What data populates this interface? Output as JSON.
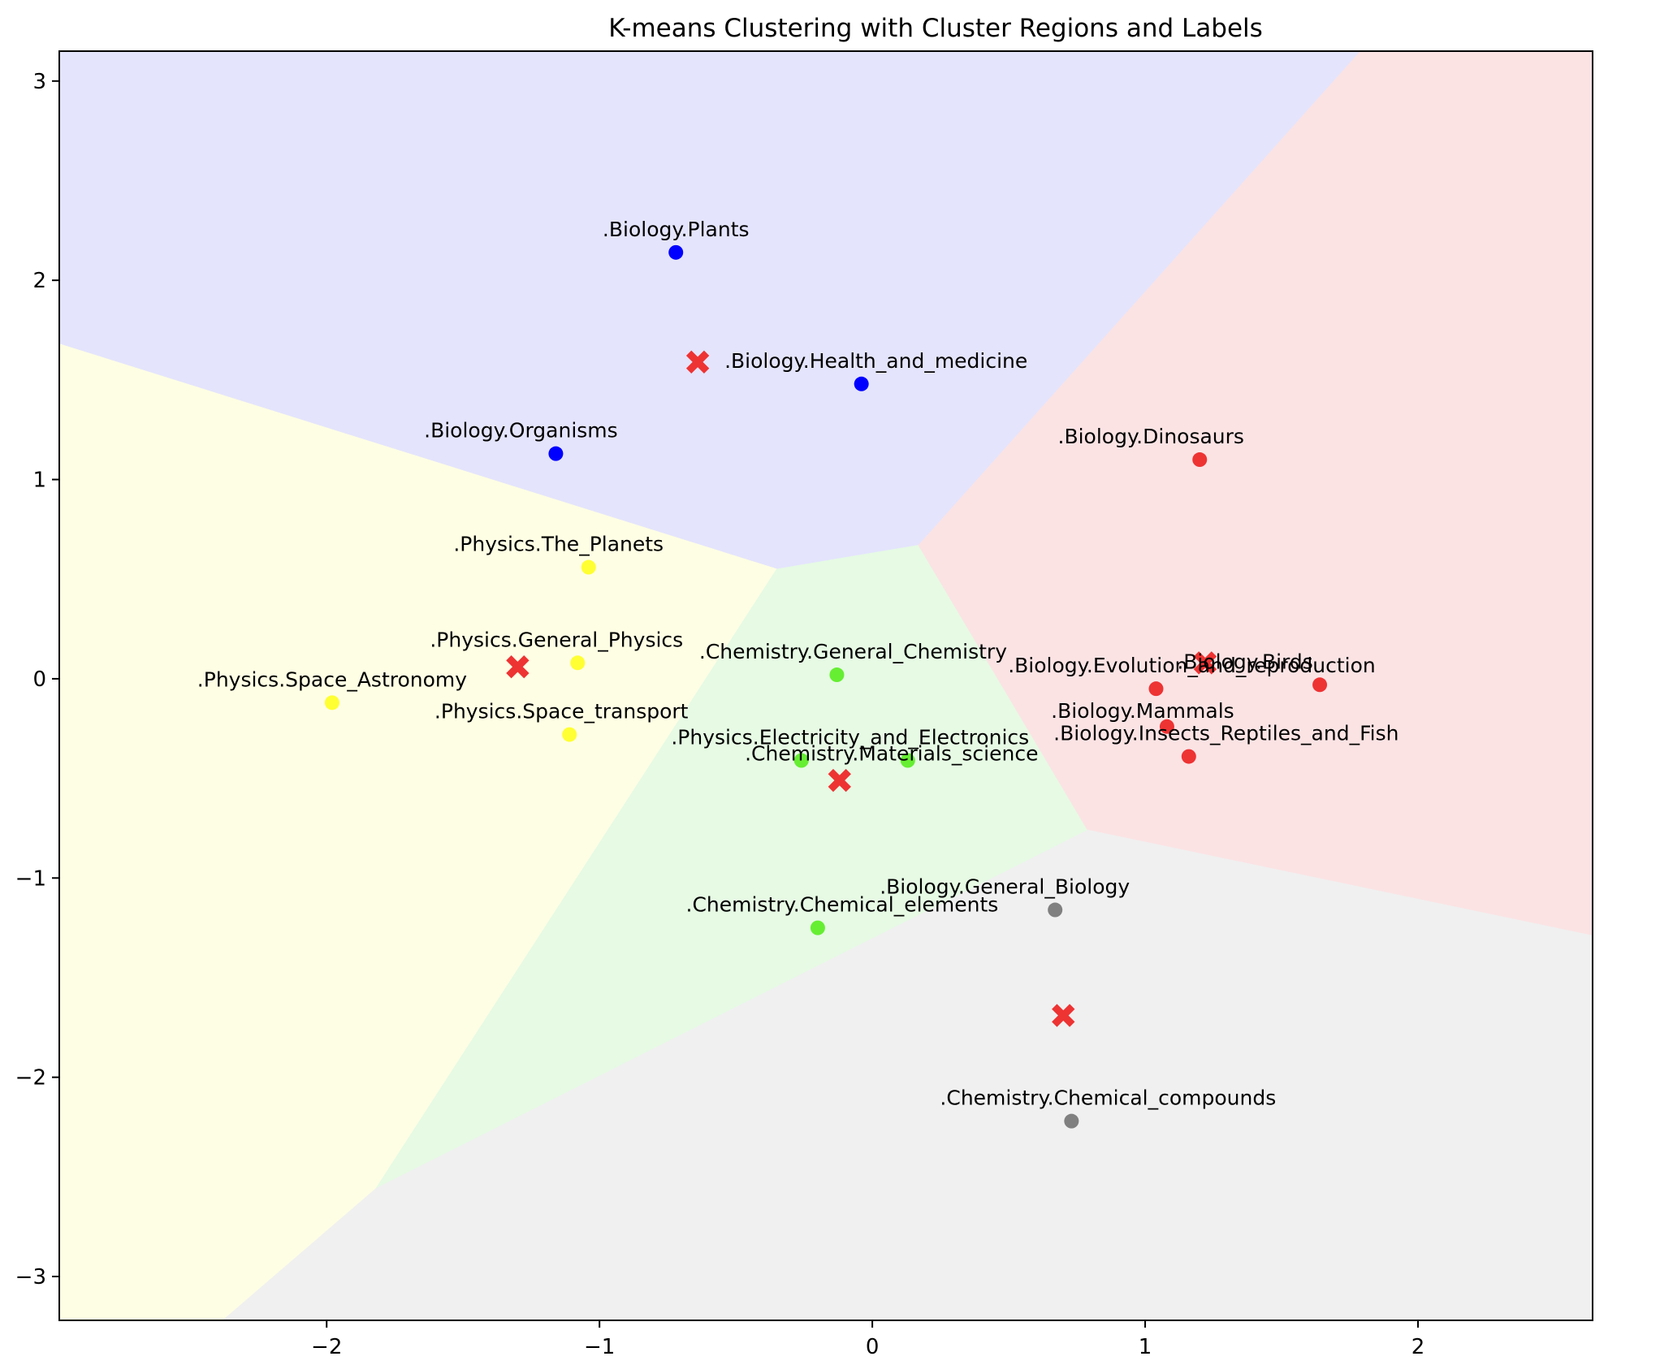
{
  "chart_data": {
    "type": "scatter",
    "title": "K-means Clustering with Cluster Regions and Labels",
    "xlabel": "",
    "ylabel": "",
    "xlim": [
      -2.98,
      2.64
    ],
    "ylim": [
      -3.22,
      3.15
    ],
    "xticks": [
      -2,
      -1,
      0,
      1,
      2
    ],
    "yticks": [
      -3,
      -2,
      -1,
      0,
      1,
      2,
      3
    ],
    "grid": false,
    "legend": "none",
    "regions": [
      {
        "cluster": "blue",
        "color": "#e4e4fc",
        "polygon": [
          [
            -2.98,
            1.68
          ],
          [
            -0.35,
            0.55
          ],
          [
            0.17,
            0.67
          ],
          [
            1.79,
            3.15
          ],
          [
            -2.98,
            3.15
          ]
        ]
      },
      {
        "cluster": "yellow",
        "color": "#fefee4",
        "polygon": [
          [
            -2.98,
            1.68
          ],
          [
            -0.35,
            0.55
          ],
          [
            -1.82,
            -2.56
          ],
          [
            -2.38,
            -3.22
          ],
          [
            -2.98,
            -3.22
          ]
        ]
      },
      {
        "cluster": "green",
        "color": "#e6fae4",
        "polygon": [
          [
            -0.35,
            0.55
          ],
          [
            0.17,
            0.67
          ],
          [
            0.79,
            -0.76
          ],
          [
            -1.82,
            -2.56
          ]
        ]
      },
      {
        "cluster": "red",
        "color": "#fbe3e4",
        "polygon": [
          [
            0.17,
            0.67
          ],
          [
            1.79,
            3.15
          ],
          [
            2.64,
            3.15
          ],
          [
            2.64,
            -1.29
          ],
          [
            0.79,
            -0.76
          ]
        ]
      },
      {
        "cluster": "gray",
        "color": "#f0f0f0",
        "polygon": [
          [
            0.79,
            -0.76
          ],
          [
            2.64,
            -1.29
          ],
          [
            2.64,
            -3.22
          ],
          [
            -2.38,
            -3.22
          ],
          [
            -1.82,
            -2.56
          ]
        ]
      }
    ],
    "points": [
      {
        "label": ".Biology.Plants",
        "x": -0.72,
        "y": 2.14,
        "color": "#0000ff"
      },
      {
        "label": ".Biology.Health_and_medicine",
        "x": -0.04,
        "y": 1.48,
        "color": "#0000ff"
      },
      {
        "label": ".Biology.Organisms",
        "x": -1.16,
        "y": 1.13,
        "color": "#0000ff"
      },
      {
        "label": ".Physics.The_Planets",
        "x": -1.04,
        "y": 0.56,
        "color": "#ffff33"
      },
      {
        "label": ".Physics.General_Physics",
        "x": -1.08,
        "y": 0.08,
        "color": "#ffff33"
      },
      {
        "label": ".Physics.Space_Astronomy",
        "x": -1.98,
        "y": -0.12,
        "color": "#ffff33"
      },
      {
        "label": ".Physics.Space_transport",
        "x": -1.11,
        "y": -0.28,
        "color": "#ffff33"
      },
      {
        "label": ".Chemistry.General_Chemistry",
        "x": -0.13,
        "y": 0.02,
        "color": "#66ee33"
      },
      {
        "label": ".Physics.Electricity_and_Electronics",
        "x": -0.26,
        "y": -0.41,
        "color": "#66ee33"
      },
      {
        "label": ".Chemistry.Materials_science",
        "x": 0.13,
        "y": -0.41,
        "color": "#66ee33"
      },
      {
        "label": ".Chemistry.Chemical_elements",
        "x": -0.2,
        "y": -1.25,
        "color": "#66ee33"
      },
      {
        "label": ".Biology.Dinosaurs",
        "x": 1.2,
        "y": 1.1,
        "color": "#ee3333"
      },
      {
        "label": ".Biology.Evolution_and_reproduction",
        "x": 1.04,
        "y": -0.05,
        "color": "#ee3333"
      },
      {
        "label": ".Biology.Birds",
        "x": 1.64,
        "y": -0.03,
        "color": "#ee3333"
      },
      {
        "label": ".Biology.Mammals",
        "x": 1.08,
        "y": -0.24,
        "color": "#ee3333"
      },
      {
        "label": ".Biology.Insects_Reptiles_and_Fish",
        "x": 1.16,
        "y": -0.39,
        "color": "#ee3333"
      },
      {
        "label": ".Biology.General_Biology",
        "x": 0.67,
        "y": -1.16,
        "color": "#808080"
      },
      {
        "label": ".Chemistry.Chemical_compounds",
        "x": 0.73,
        "y": -2.22,
        "color": "#808080"
      }
    ],
    "centroids": [
      {
        "x": -0.64,
        "y": 1.59,
        "color": "#ee3333"
      },
      {
        "x": -1.3,
        "y": 0.06,
        "color": "#ee3333"
      },
      {
        "x": -0.12,
        "y": -0.51,
        "color": "#ee3333"
      },
      {
        "x": 1.22,
        "y": 0.08,
        "color": "#ee3333"
      },
      {
        "x": 0.7,
        "y": -1.69,
        "color": "#ee3333"
      }
    ]
  }
}
